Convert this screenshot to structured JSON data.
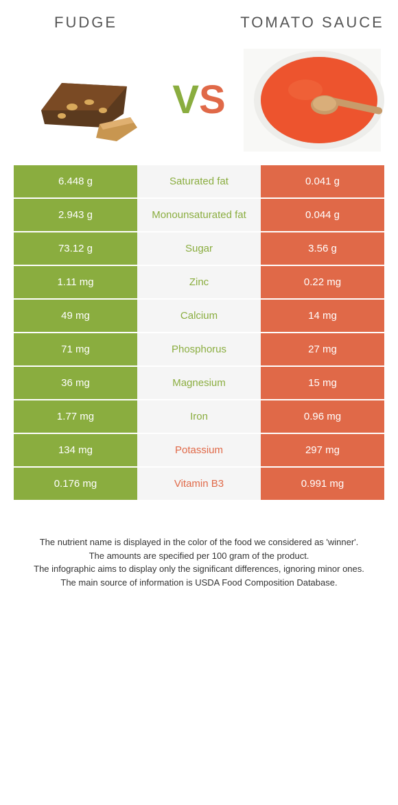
{
  "foods": {
    "left": {
      "name": "Fudge",
      "color": "#8aad3f"
    },
    "right": {
      "name": "Tomato Sauce",
      "color": "#e06948"
    }
  },
  "vs_text": {
    "v": "V",
    "s": "S"
  },
  "rows": [
    {
      "left": "6.448 g",
      "label": "Saturated fat",
      "right": "0.041 g",
      "winner": "left"
    },
    {
      "left": "2.943 g",
      "label": "Monounsaturated fat",
      "right": "0.044 g",
      "winner": "left"
    },
    {
      "left": "73.12 g",
      "label": "Sugar",
      "right": "3.56 g",
      "winner": "left"
    },
    {
      "left": "1.11 mg",
      "label": "Zinc",
      "right": "0.22 mg",
      "winner": "left"
    },
    {
      "left": "49 mg",
      "label": "Calcium",
      "right": "14 mg",
      "winner": "left"
    },
    {
      "left": "71 mg",
      "label": "Phosphorus",
      "right": "27 mg",
      "winner": "left"
    },
    {
      "left": "36 mg",
      "label": "Magnesium",
      "right": "15 mg",
      "winner": "left"
    },
    {
      "left": "1.77 mg",
      "label": "Iron",
      "right": "0.96 mg",
      "winner": "left"
    },
    {
      "left": "134 mg",
      "label": "Potassium",
      "right": "297 mg",
      "winner": "right"
    },
    {
      "left": "0.176 mg",
      "label": "Vitamin B3",
      "right": "0.991 mg",
      "winner": "right"
    }
  ],
  "footer": {
    "line1": "The nutrient name is displayed in the color of the food we considered as 'winner'.",
    "line2": "The amounts are specified per 100 gram of the product.",
    "line3": "The infographic aims to display only the significant differences, ignoring minor ones.",
    "line4": "The main source of information is USDA Food Composition Database."
  },
  "style": {
    "left_color": "#8aad3f",
    "right_color": "#e06948",
    "mid_bg": "#f5f5f5",
    "page_bg": "#ffffff",
    "title_fontsize": 22,
    "vs_fontsize": 58,
    "cell_fontsize": 15,
    "footer_fontsize": 13
  }
}
